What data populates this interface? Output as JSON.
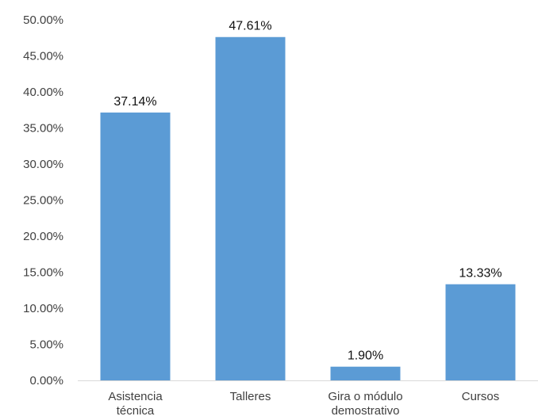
{
  "chart_data": {
    "type": "bar",
    "categories": [
      [
        "Asistencia",
        "técnica"
      ],
      [
        "Talleres"
      ],
      [
        "Gira o módulo",
        "demostrativo"
      ],
      [
        "Cursos"
      ]
    ],
    "values": [
      37.14,
      47.61,
      1.9,
      13.33
    ],
    "value_labels": [
      "37.14%",
      "47.61%",
      "1.90%",
      "13.33%"
    ],
    "y_ticks": [
      0,
      5,
      10,
      15,
      20,
      25,
      30,
      35,
      40,
      45,
      50
    ],
    "y_tick_labels": [
      "0.00%",
      "5.00%",
      "10.00%",
      "15.00%",
      "20.00%",
      "25.00%",
      "30.00%",
      "35.00%",
      "40.00%",
      "45.00%",
      "50.00%"
    ],
    "ylim": [
      0,
      50
    ],
    "title": "",
    "xlabel": "",
    "ylabel": "",
    "grid": false,
    "legend": "none",
    "colors": {
      "bar": "#5b9bd5",
      "axis": "#d9d9d9"
    }
  }
}
